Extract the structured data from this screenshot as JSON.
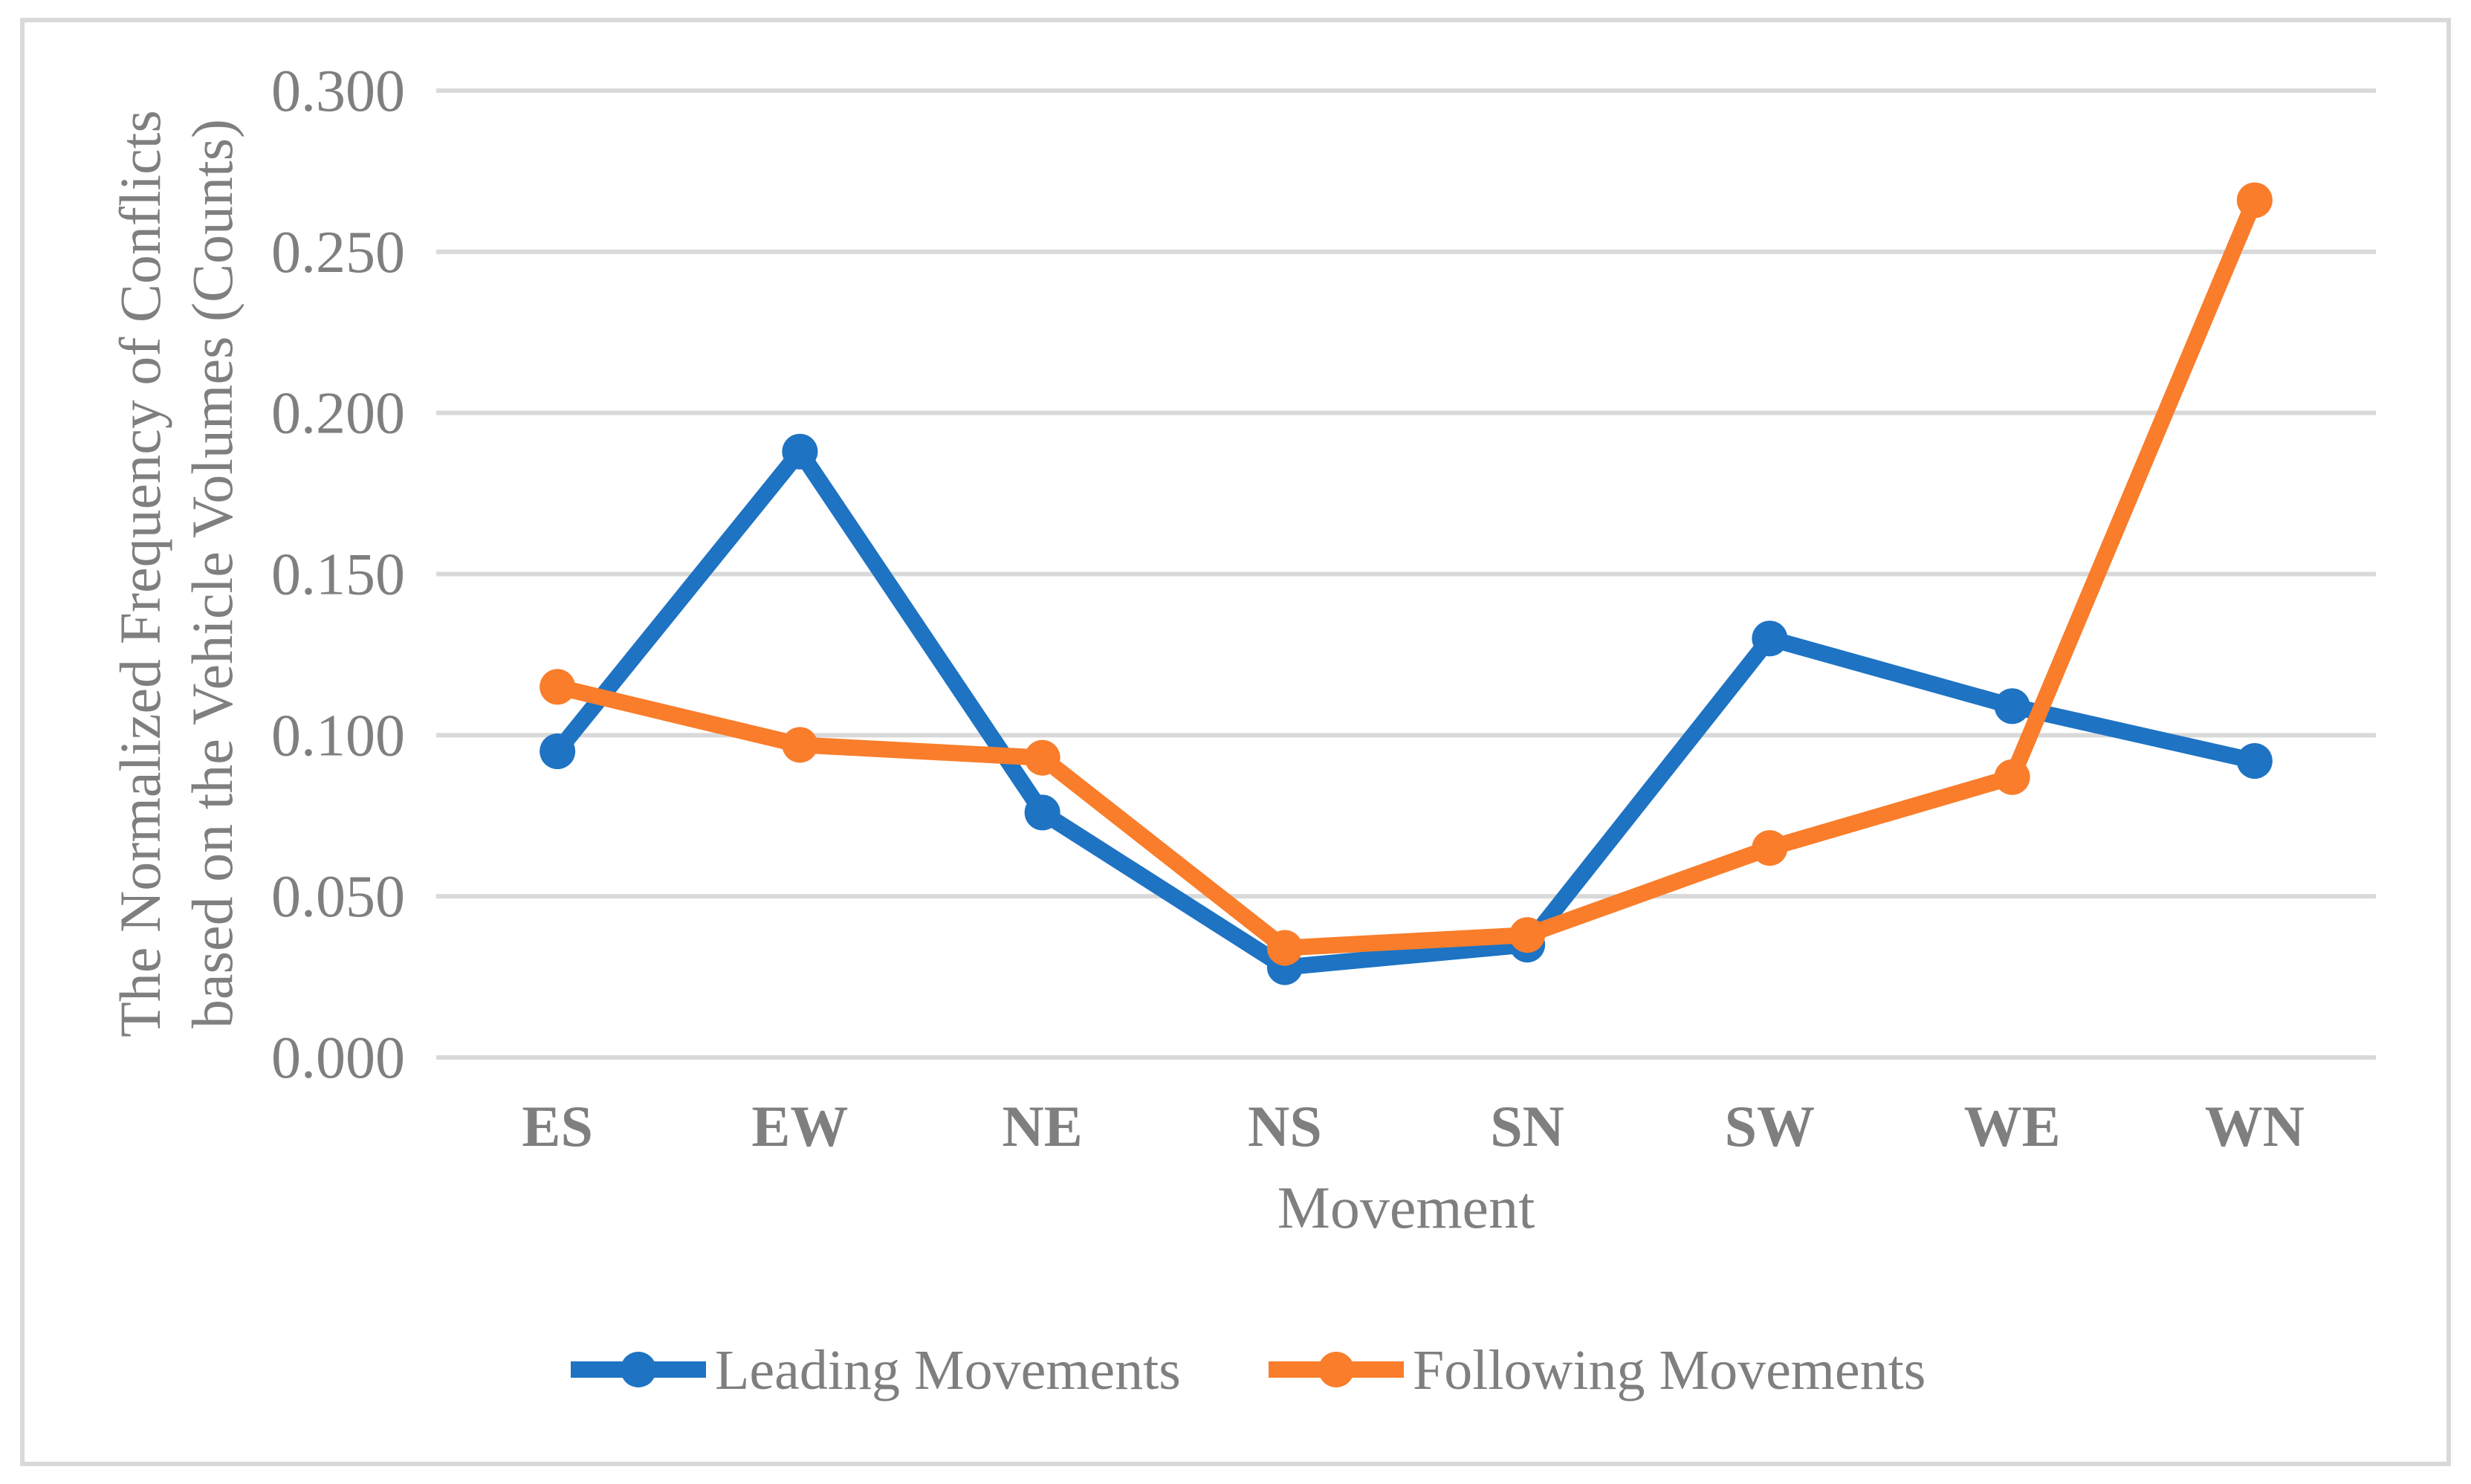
{
  "figure": {
    "background": "#FFFFFF",
    "border_color": "#D9D9D9"
  },
  "chart_data": {
    "type": "line",
    "title": "",
    "xlabel": "Movement",
    "ylabel_line1": "The Normalized Frequency of Conflicts",
    "ylabel_line2": "based on the Vehicle Volumes (Counts)",
    "categories": [
      "ES",
      "EW",
      "NE",
      "NS",
      "SN",
      "SW",
      "WE",
      "WN"
    ],
    "series": [
      {
        "name": "Leading Movements",
        "color": "#1E73C3",
        "values": [
          0.095,
          0.188,
          0.076,
          0.028,
          0.035,
          0.13,
          0.109,
          0.092
        ]
      },
      {
        "name": "Following Movements",
        "color": "#F97D2B",
        "values": [
          0.115,
          0.097,
          0.093,
          0.034,
          0.038,
          0.065,
          0.087,
          0.266
        ]
      }
    ],
    "ylim": [
      0.0,
      0.3
    ],
    "ytick_step": 0.05,
    "ytick_labels": [
      "0.000",
      "0.050",
      "0.100",
      "0.150",
      "0.200",
      "0.250",
      "0.300"
    ],
    "grid": true,
    "grid_color": "#D9D9D9",
    "text_color": "#7F7F7F",
    "legend_position": "bottom-center",
    "marker": "circle"
  }
}
